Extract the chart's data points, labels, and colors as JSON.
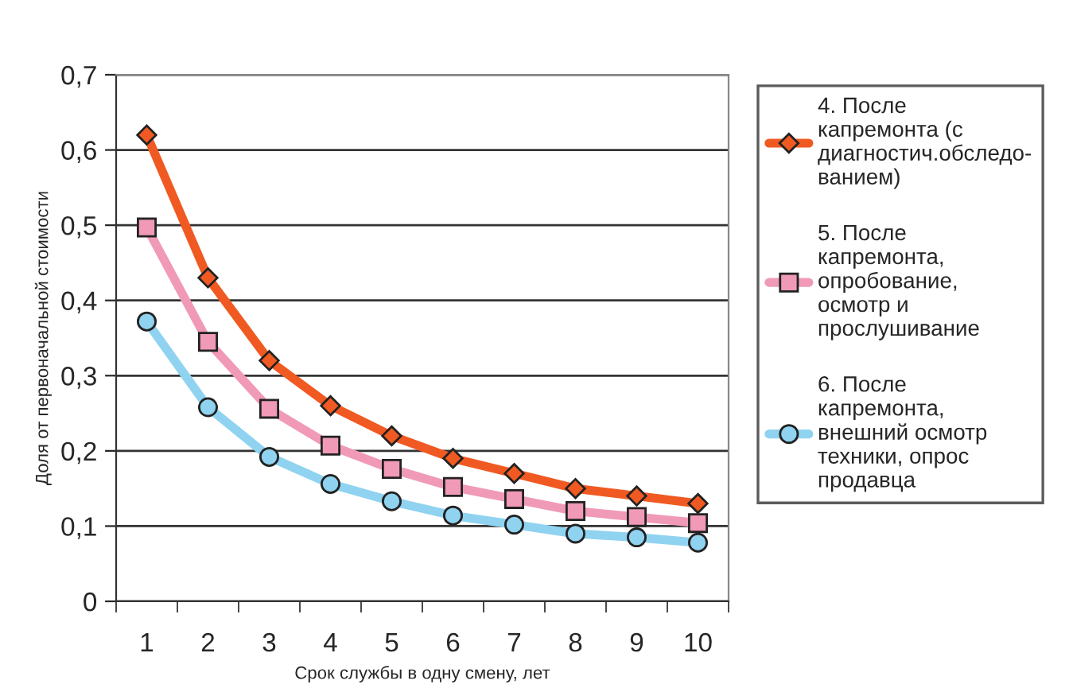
{
  "chart_data": {
    "type": "line",
    "xlabel": "Срок службы в одну смену, лет",
    "ylabel": "Доля от первоначальной стоимости",
    "categories": [
      "1",
      "2",
      "3",
      "4",
      "5",
      "6",
      "7",
      "8",
      "9",
      "10"
    ],
    "series": [
      {
        "name": "4. После\nкапремонта (с\nдиагностич.обследо-\nванием)",
        "color": "#f05a22",
        "marker": "diamond",
        "values": [
          0.62,
          0.43,
          0.32,
          0.26,
          0.22,
          0.19,
          0.17,
          0.15,
          0.14,
          0.13
        ]
      },
      {
        "name": "5. После\nкапремонта,\nопробование,\nосмотр и\nпрослушивание",
        "color": "#f09ab8",
        "marker": "square",
        "values": [
          0.497,
          0.345,
          0.256,
          0.207,
          0.176,
          0.152,
          0.136,
          0.12,
          0.112,
          0.104
        ]
      },
      {
        "name": "6. После\nкапремонта,\nвнешний осмотр\nтехники, опрос\nпродавца",
        "color": "#8fd3f0",
        "marker": "circle",
        "values": [
          0.372,
          0.258,
          0.192,
          0.156,
          0.133,
          0.114,
          0.102,
          0.09,
          0.085,
          0.078
        ]
      }
    ],
    "ylim": [
      0,
      0.7
    ],
    "yticks": [
      {
        "value": 0,
        "label": "0"
      },
      {
        "value": 0.1,
        "label": "0,1"
      },
      {
        "value": 0.2,
        "label": "0,2"
      },
      {
        "value": 0.3,
        "label": "0,3"
      },
      {
        "value": 0.4,
        "label": "0,4"
      },
      {
        "value": 0.5,
        "label": "0,5"
      },
      {
        "value": 0.6,
        "label": "0,6"
      },
      {
        "value": 0.7,
        "label": "0,7"
      }
    ],
    "grid": "y",
    "legend": "right"
  }
}
